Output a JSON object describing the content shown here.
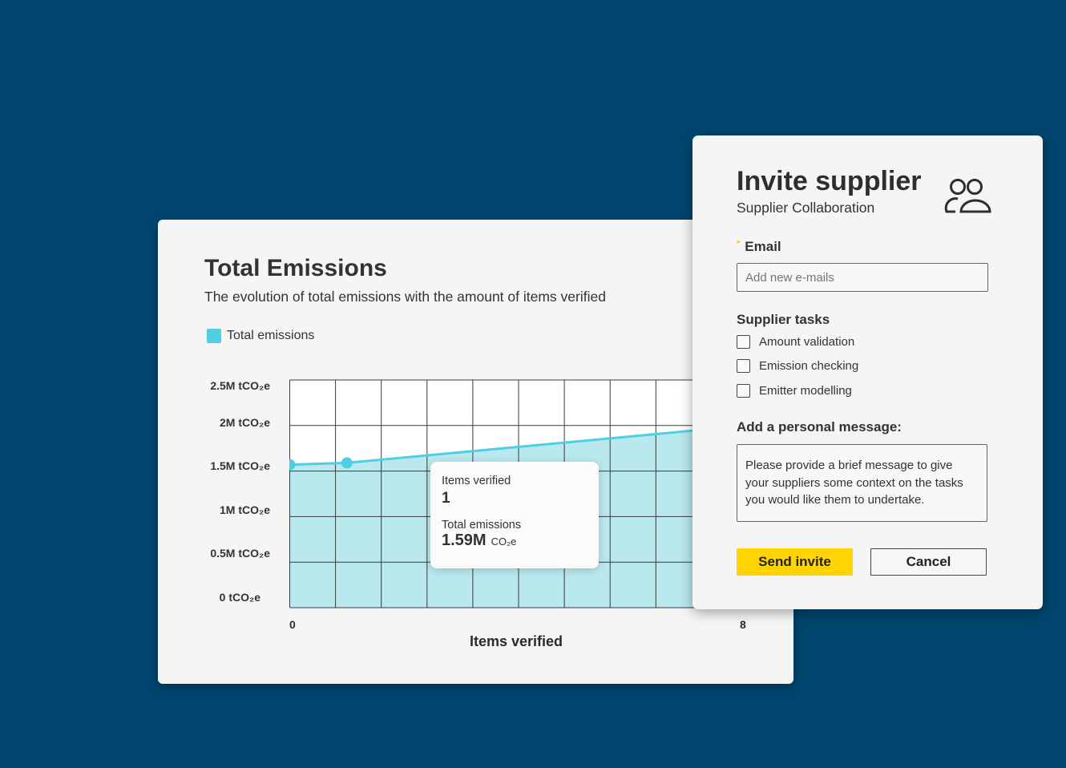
{
  "chart_card": {
    "title": "Total Emissions",
    "subtitle": "The evolution of total emissions with the amount of items verified",
    "tooltip": {
      "label1": "Items verified",
      "value1": "1",
      "label2": "Total emissions",
      "value2": "1.59M",
      "unit2": "CO₂e"
    }
  },
  "chart_data": {
    "type": "area",
    "title": "Total Emissions",
    "subtitle": "The evolution of total emissions with the amount of items verified",
    "xlabel": "Items verified",
    "ylabel": "",
    "xlim": [
      0,
      8
    ],
    "ylim": [
      0,
      2500000
    ],
    "x_tick_labels": [
      "0",
      "8"
    ],
    "y_tick_labels": [
      "0 tCO₂e",
      "0.5M tCO₂e",
      "1M tCO₂e",
      "1.5M tCO₂e",
      "2M tCO₂e",
      "2.5M tCO₂e"
    ],
    "grid": true,
    "legend": "top-left",
    "series": [
      {
        "name": "Total emissions",
        "color": "#4fcfe3",
        "x": [
          0,
          1,
          8
        ],
        "y": [
          1570000,
          1590000,
          2000000
        ]
      }
    ]
  },
  "modal": {
    "title": "Invite supplier",
    "subtitle": "Supplier Collaboration",
    "icon": "users-icon",
    "email_label": "Email",
    "required_mark": "*",
    "email_placeholder": "Add new e-mails",
    "tasks_label": "Supplier tasks",
    "tasks": [
      {
        "label": "Amount validation",
        "checked": false
      },
      {
        "label": "Emission checking",
        "checked": false
      },
      {
        "label": "Emitter modelling",
        "checked": false
      }
    ],
    "message_label": "Add a personal message:",
    "message_placeholder": "Please provide a brief message to give your suppliers some context on the tasks you would like them to undertake.",
    "send_label": "Send invite",
    "cancel_label": "Cancel",
    "accent": "#ffd400"
  }
}
